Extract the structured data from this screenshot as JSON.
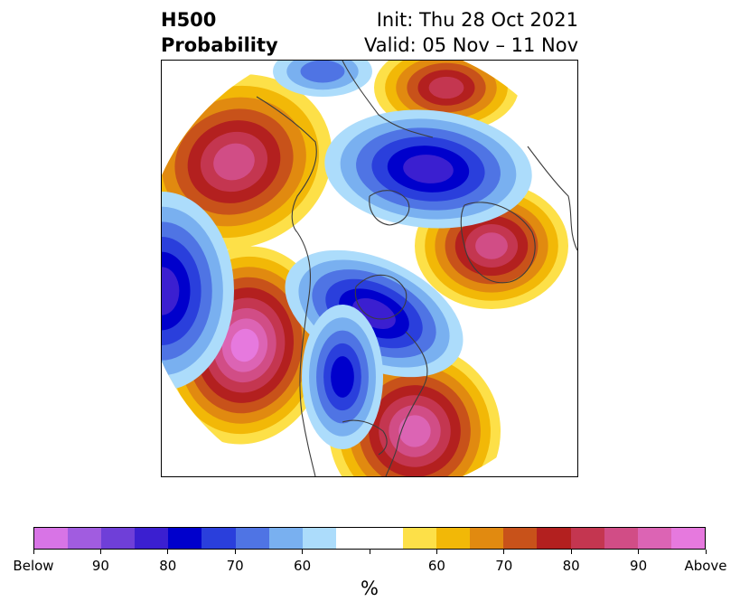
{
  "title": {
    "left_line1": "H500",
    "left_line2": "Probability",
    "right_line1": "Init: Thu 28 Oct 2021",
    "right_line2": "Valid: 05 Nov – 11 Nov"
  },
  "colorbar": {
    "unit": "%",
    "colors": [
      "#d874e6",
      "#a15ce0",
      "#6f3fd8",
      "#3b1fd0",
      "#0000cc",
      "#2a3fdc",
      "#4f74e4",
      "#79b0f0",
      "#acdcfb",
      "#ffffff",
      "#ffffff",
      "#fde048",
      "#f2b807",
      "#e18a10",
      "#c8521a",
      "#b3201f",
      "#c43650",
      "#d14d86",
      "#dc64b4",
      "#e679de"
    ],
    "tick_labels": [
      "Below",
      "90",
      "80",
      "70",
      "60",
      "",
      "60",
      "70",
      "80",
      "90",
      "Above"
    ]
  },
  "palette": {
    "above": [
      "#fde048",
      "#f2b807",
      "#e18a10",
      "#c8521a",
      "#b3201f",
      "#c43650",
      "#d14d86",
      "#dc64b4",
      "#e679de"
    ],
    "below": [
      "#acdcfb",
      "#79b0f0",
      "#4f74e4",
      "#2a3fdc",
      "#0000cc",
      "#3b1fd0",
      "#6f3fd8",
      "#a15ce0",
      "#d874e6"
    ],
    "coastline": "#3c3c3c"
  }
}
